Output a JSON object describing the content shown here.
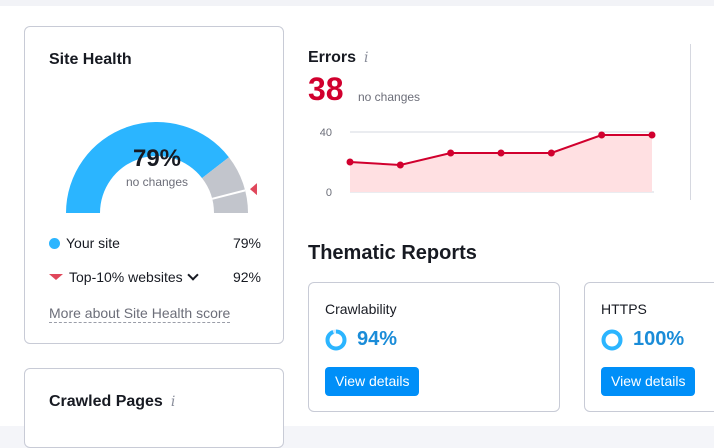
{
  "colors": {
    "accent": "#008ff8",
    "site_blue": "#2bb5ff",
    "gauge_gray": "#c2c5cc",
    "error_red": "#d1002e",
    "chart_line": "#d1002e",
    "chart_fill": "#ffe0e2",
    "marker_red": "#e0475b"
  },
  "site_health": {
    "title": "Site Health",
    "percent_label": "79%",
    "percent_value": 79,
    "top10_value": 92,
    "change_label": "no changes",
    "legend": [
      {
        "label": "Your site",
        "value": "79%",
        "icon": "blue-dot-icon"
      },
      {
        "label": "Top-10% websites",
        "value": "92%",
        "icon": "red-triangle-icon"
      }
    ],
    "more_link": "More about Site Health score"
  },
  "errors": {
    "title": "Errors",
    "info_icon": "i",
    "value": "38",
    "change_label": "no changes"
  },
  "chart_data": {
    "type": "area",
    "title": "Errors",
    "y_ticks": [
      "40",
      "0"
    ],
    "ylim": [
      0,
      45
    ],
    "values": [
      20,
      18,
      26,
      26,
      26,
      38,
      38
    ],
    "xlabel": "",
    "ylabel": ""
  },
  "thematic": {
    "title": "Thematic Reports",
    "cards": [
      {
        "name": "Crawlability",
        "value": "94%",
        "percent": 94,
        "button": "View details"
      },
      {
        "name": "HTTPS",
        "value": "100%",
        "percent": 100,
        "button": "View details"
      }
    ]
  },
  "crawled": {
    "title": "Crawled Pages",
    "info_icon": "i"
  }
}
